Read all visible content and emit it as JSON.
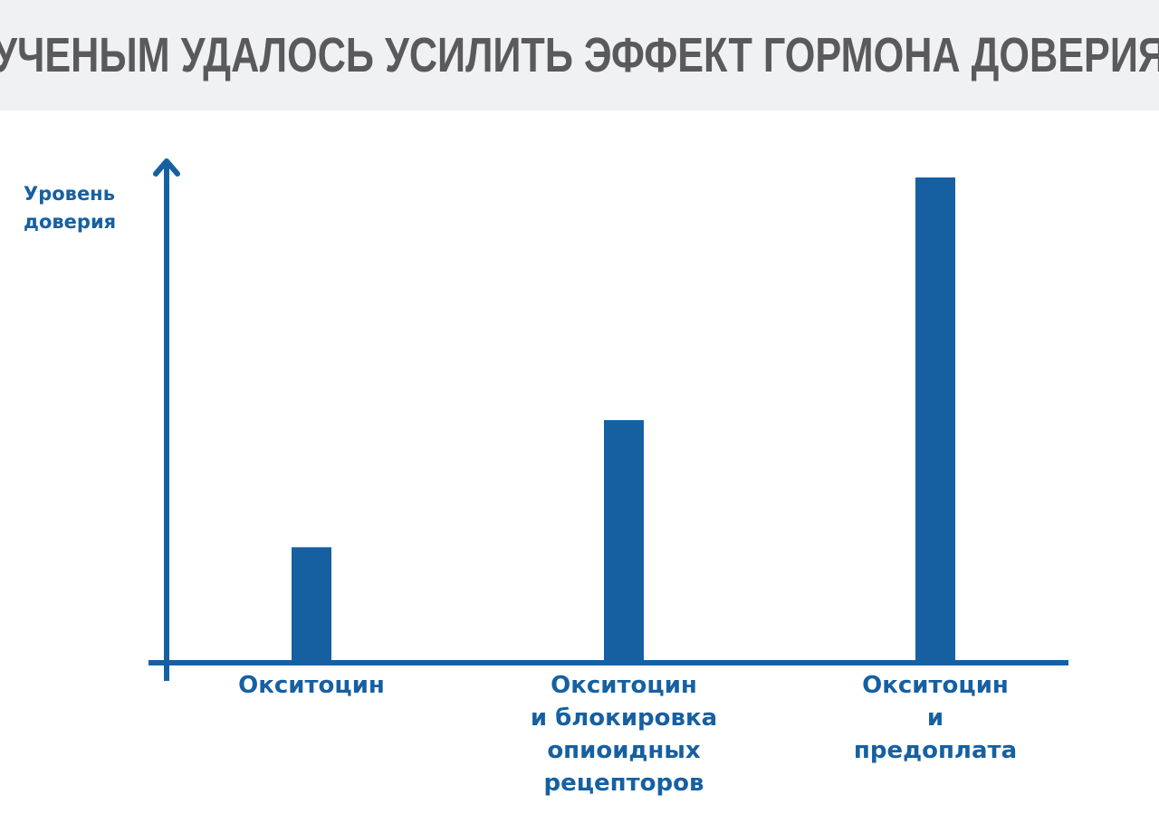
{
  "title": "УЧЕНЫМ УДАЛОСЬ УСИЛИТЬ ЭФФЕКТ ГОРМОНА ДОВЕРИЯ",
  "colors": {
    "banner_background": "#f0f1f2",
    "title_text": "#5a5a5c",
    "bars_and_axes": "#1660a2",
    "background": "#ffffff"
  },
  "chart_data": {
    "type": "bar",
    "ylabel": [
      "Уровень",
      "доверия"
    ],
    "xlabel": "",
    "categories": [
      [
        "Окситоцин"
      ],
      [
        "Окситоцин",
        "и блокировка",
        "опиоидных",
        "рецепторов"
      ],
      [
        "Окситоцин",
        "и",
        "предоплата"
      ]
    ],
    "values": [
      1,
      2.1,
      4.2
    ],
    "ylim": [
      0,
      4.2
    ],
    "grid": false,
    "legend": "none",
    "y_tick_labels": "none"
  }
}
